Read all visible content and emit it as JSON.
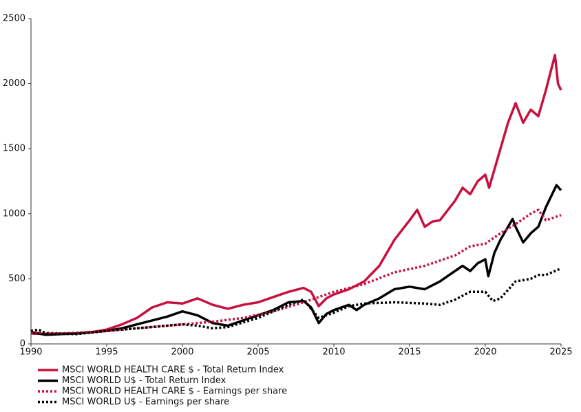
{
  "chart_data": {
    "type": "line",
    "xlim": [
      1990,
      2025
    ],
    "xticks": [
      1990,
      1995,
      2000,
      2005,
      2010,
      2015,
      2020,
      2025
    ],
    "ylim": [
      0,
      2500
    ],
    "yticks": [
      0,
      500,
      1000,
      1500,
      2000,
      2500
    ],
    "series": [
      {
        "name": "MSCI WORLD HEALTH CARE $ - Total Return Index",
        "color": "#c8103e",
        "style": "solid",
        "x": [
          1990,
          1991,
          1992,
          1993,
          1994,
          1995,
          1996,
          1997,
          1998,
          1999,
          2000,
          2001,
          2002,
          2003,
          2004,
          2005,
          2006,
          2007,
          2008,
          2008.5,
          2009,
          2009.5,
          2010,
          2011,
          2012,
          2013,
          2014,
          2015,
          2015.5,
          2016,
          2016.5,
          2017,
          2018,
          2018.5,
          2019,
          2019.5,
          2020,
          2020.25,
          2021,
          2021.5,
          2022,
          2022.5,
          2023,
          2023.5,
          2024,
          2024.6,
          2024.8,
          2025
        ],
        "values": [
          80,
          75,
          80,
          80,
          90,
          110,
          150,
          200,
          280,
          320,
          310,
          350,
          300,
          270,
          300,
          320,
          360,
          400,
          430,
          400,
          290,
          350,
          380,
          420,
          480,
          600,
          800,
          950,
          1030,
          900,
          940,
          950,
          1100,
          1200,
          1150,
          1250,
          1300,
          1200,
          1500,
          1700,
          1850,
          1700,
          1800,
          1750,
          1950,
          2220,
          2000,
          1950
        ]
      },
      {
        "name": "MSCI WORLD U$ - Total Return Index",
        "color": "#000000",
        "style": "solid",
        "x": [
          1990,
          1991,
          1992,
          1993,
          1994,
          1995,
          1996,
          1997,
          1998,
          1999,
          2000,
          2001,
          2002,
          2003,
          2004,
          2005,
          2006,
          2007,
          2008,
          2008.5,
          2009,
          2009.5,
          2010,
          2011,
          2011.5,
          2012,
          2013,
          2014,
          2015,
          2016,
          2017,
          2018,
          2018.5,
          2019,
          2019.5,
          2020,
          2020.2,
          2020.6,
          2021,
          2021.8,
          2022,
          2022.5,
          2023,
          2023.5,
          2024,
          2024.7,
          2025
        ],
        "values": [
          90,
          70,
          75,
          80,
          90,
          100,
          120,
          150,
          180,
          210,
          250,
          220,
          160,
          140,
          180,
          220,
          260,
          320,
          330,
          280,
          160,
          230,
          260,
          300,
          260,
          300,
          350,
          420,
          440,
          420,
          480,
          560,
          600,
          560,
          620,
          650,
          520,
          700,
          800,
          960,
          900,
          780,
          850,
          900,
          1050,
          1220,
          1180
        ]
      },
      {
        "name": "MSCI WORLD HEALTH CARE $ - Earnings per share",
        "color": "#c8103e",
        "style": "dotted",
        "x": [
          1990,
          1992,
          1995,
          1997,
          2000,
          2002,
          2004,
          2006,
          2008,
          2009,
          2010,
          2012,
          2014,
          2016,
          2018,
          2019,
          2020,
          2021,
          2022,
          2023,
          2023.5,
          2024,
          2025
        ],
        "values": [
          90,
          80,
          100,
          120,
          150,
          170,
          200,
          250,
          320,
          360,
          400,
          460,
          550,
          600,
          680,
          750,
          770,
          850,
          920,
          1000,
          1030,
          950,
          990
        ]
      },
      {
        "name": "MSCI WORLD U$ - Earnings per share",
        "color": "#000000",
        "style": "dotted",
        "x": [
          1990,
          1990.5,
          1991,
          1993,
          1995,
          1997,
          2000,
          2001,
          2002,
          2003,
          2005,
          2007,
          2008,
          2009,
          2010,
          2011,
          2012,
          2014,
          2016,
          2017,
          2018,
          2019,
          2020,
          2020.5,
          2021,
          2022,
          2023,
          2023.5,
          2024,
          2025
        ],
        "values": [
          100,
          110,
          80,
          75,
          100,
          120,
          150,
          140,
          120,
          130,
          200,
          300,
          340,
          200,
          240,
          290,
          310,
          320,
          310,
          300,
          340,
          400,
          400,
          330,
          350,
          480,
          500,
          530,
          530,
          580
        ]
      }
    ]
  }
}
